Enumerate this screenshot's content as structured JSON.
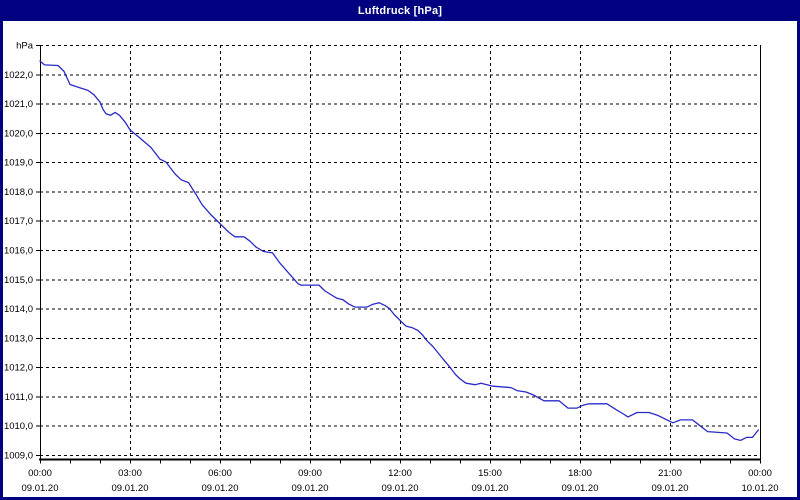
{
  "window": {
    "title": "Luftdruck [hPa]"
  },
  "colors": {
    "titlebar_bg": "#000080",
    "titlebar_text": "#ffffff",
    "window_border": "#000080",
    "plot_bg": "#ffffff",
    "grid": "#000000",
    "axis": "#000000",
    "label_text": "#000000",
    "line": "#2a2ac8"
  },
  "chart_data": {
    "type": "line",
    "title": "Luftdruck [hPa]",
    "unit_label": "hPa",
    "grid": "dashed",
    "legend_position": "none",
    "y_axis": {
      "min": 1009,
      "max": 1023,
      "tick_step": 1,
      "top_label": "hPa",
      "tick_labels": [
        "1009,0",
        "1010,0",
        "1011,0",
        "1012,0",
        "1013,0",
        "1014,0",
        "1015,0",
        "1016,0",
        "1017,0",
        "1018,0",
        "1019,0",
        "1020,0",
        "1021,0",
        "1022,0"
      ]
    },
    "x_axis": {
      "hours_total": 24,
      "major_tick_hours": 3,
      "minor_tick_hours": 1,
      "ticks": [
        {
          "time": "00:00",
          "date": "09.01.20"
        },
        {
          "time": "03:00",
          "date": "09.01.20"
        },
        {
          "time": "06:00",
          "date": "09.01.20"
        },
        {
          "time": "09:00",
          "date": "09.01.20"
        },
        {
          "time": "12:00",
          "date": "09.01.20"
        },
        {
          "time": "15:00",
          "date": "09.01.20"
        },
        {
          "time": "18:00",
          "date": "09.01.20"
        },
        {
          "time": "21:00",
          "date": "09.01.20"
        },
        {
          "time": "00:00",
          "date": "10.01.20"
        }
      ]
    },
    "series": [
      {
        "name": "Luftdruck",
        "unit": "hPa",
        "points": [
          [
            0.0,
            1022.45
          ],
          [
            0.15,
            1022.32
          ],
          [
            0.6,
            1022.3
          ],
          [
            0.8,
            1022.1
          ],
          [
            1.0,
            1021.65
          ],
          [
            1.3,
            1021.55
          ],
          [
            1.6,
            1021.45
          ],
          [
            1.8,
            1021.3
          ],
          [
            2.0,
            1021.05
          ],
          [
            2.1,
            1020.8
          ],
          [
            2.2,
            1020.65
          ],
          [
            2.35,
            1020.6
          ],
          [
            2.5,
            1020.7
          ],
          [
            2.65,
            1020.6
          ],
          [
            2.85,
            1020.35
          ],
          [
            3.0,
            1020.1
          ],
          [
            3.3,
            1019.85
          ],
          [
            3.7,
            1019.5
          ],
          [
            4.0,
            1019.1
          ],
          [
            4.2,
            1019.0
          ],
          [
            4.5,
            1018.6
          ],
          [
            4.7,
            1018.4
          ],
          [
            4.95,
            1018.3
          ],
          [
            5.2,
            1017.9
          ],
          [
            5.4,
            1017.55
          ],
          [
            5.7,
            1017.2
          ],
          [
            6.0,
            1016.9
          ],
          [
            6.3,
            1016.6
          ],
          [
            6.5,
            1016.45
          ],
          [
            6.8,
            1016.45
          ],
          [
            7.0,
            1016.3
          ],
          [
            7.2,
            1016.1
          ],
          [
            7.45,
            1015.95
          ],
          [
            7.75,
            1015.9
          ],
          [
            8.0,
            1015.55
          ],
          [
            8.3,
            1015.2
          ],
          [
            8.6,
            1014.85
          ],
          [
            8.7,
            1014.8
          ],
          [
            9.3,
            1014.8
          ],
          [
            9.5,
            1014.6
          ],
          [
            9.9,
            1014.35
          ],
          [
            10.1,
            1014.3
          ],
          [
            10.3,
            1014.15
          ],
          [
            10.5,
            1014.05
          ],
          [
            10.9,
            1014.05
          ],
          [
            11.1,
            1014.15
          ],
          [
            11.3,
            1014.2
          ],
          [
            11.5,
            1014.1
          ],
          [
            11.65,
            1014.0
          ],
          [
            11.8,
            1013.8
          ],
          [
            12.0,
            1013.6
          ],
          [
            12.2,
            1013.4
          ],
          [
            12.4,
            1013.35
          ],
          [
            12.6,
            1013.25
          ],
          [
            12.75,
            1013.1
          ],
          [
            12.9,
            1012.9
          ],
          [
            13.1,
            1012.7
          ],
          [
            13.3,
            1012.45
          ],
          [
            13.5,
            1012.2
          ],
          [
            13.7,
            1011.95
          ],
          [
            13.85,
            1011.75
          ],
          [
            14.0,
            1011.6
          ],
          [
            14.2,
            1011.45
          ],
          [
            14.5,
            1011.4
          ],
          [
            14.7,
            1011.45
          ],
          [
            14.9,
            1011.4
          ],
          [
            15.1,
            1011.35
          ],
          [
            15.7,
            1011.3
          ],
          [
            15.9,
            1011.2
          ],
          [
            16.2,
            1011.15
          ],
          [
            16.45,
            1011.05
          ],
          [
            16.8,
            1010.85
          ],
          [
            17.3,
            1010.85
          ],
          [
            17.6,
            1010.6
          ],
          [
            17.9,
            1010.6
          ],
          [
            18.1,
            1010.7
          ],
          [
            18.3,
            1010.75
          ],
          [
            18.9,
            1010.75
          ],
          [
            19.2,
            1010.55
          ],
          [
            19.45,
            1010.4
          ],
          [
            19.6,
            1010.3
          ],
          [
            19.9,
            1010.45
          ],
          [
            20.3,
            1010.45
          ],
          [
            20.6,
            1010.35
          ],
          [
            20.9,
            1010.2
          ],
          [
            21.1,
            1010.1
          ],
          [
            21.35,
            1010.2
          ],
          [
            21.75,
            1010.2
          ],
          [
            22.0,
            1010.0
          ],
          [
            22.25,
            1009.8
          ],
          [
            22.9,
            1009.75
          ],
          [
            23.15,
            1009.55
          ],
          [
            23.35,
            1009.5
          ],
          [
            23.55,
            1009.6
          ],
          [
            23.75,
            1009.6
          ],
          [
            23.9,
            1009.8
          ],
          [
            23.95,
            1009.85
          ]
        ]
      }
    ]
  }
}
